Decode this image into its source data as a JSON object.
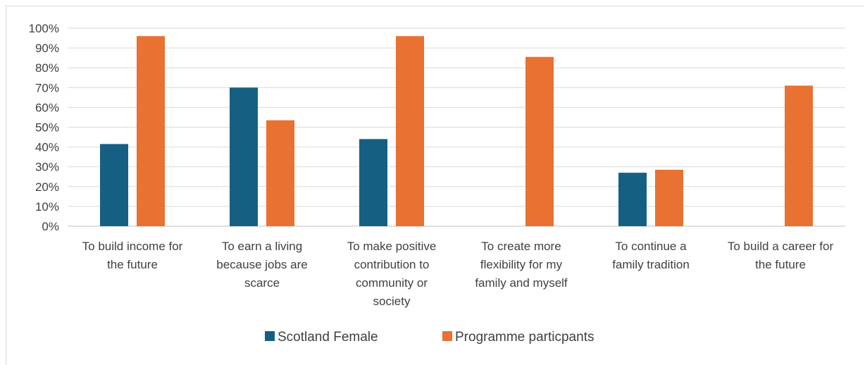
{
  "chart_data": {
    "type": "bar",
    "categories": [
      [
        "To build income for",
        "the future"
      ],
      [
        "To earn a living",
        "because jobs are",
        "scarce"
      ],
      [
        "To make positive",
        "contribution to",
        "community or",
        "society"
      ],
      [
        "To create more",
        "flexibility for my",
        "family and myself"
      ],
      [
        "To continue a",
        "family tradition"
      ],
      [
        "To build a career for",
        "the future"
      ]
    ],
    "series": [
      {
        "name": "Scotland Female",
        "color": "#156082",
        "values": [
          41.5,
          70,
          44,
          null,
          27,
          null
        ]
      },
      {
        "name": "Programme particpants",
        "color": "#e97132",
        "values": [
          96,
          53.5,
          96,
          85.5,
          28.5,
          71
        ]
      }
    ],
    "ylim": [
      0,
      100
    ],
    "yticks": [
      "0%",
      "10%",
      "20%",
      "30%",
      "40%",
      "50%",
      "60%",
      "70%",
      "80%",
      "90%",
      "100%"
    ],
    "grid": true,
    "legend": "bottom",
    "title": "",
    "xlabel": "",
    "ylabel": ""
  }
}
